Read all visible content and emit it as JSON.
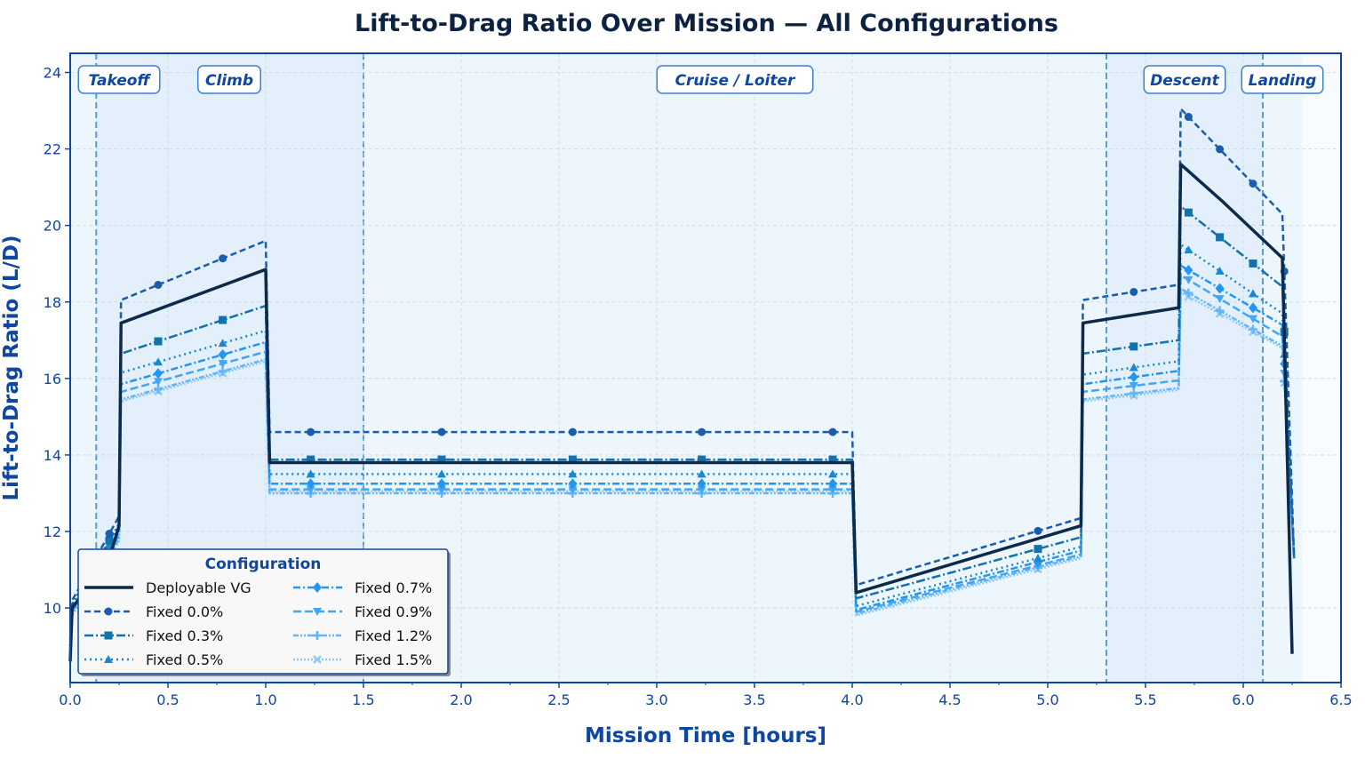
{
  "chart_data": {
    "type": "line",
    "title": "Lift-to-Drag Ratio Over Mission — All Configurations",
    "xlabel": "Mission Time  [hours]",
    "ylabel": "Lift-to-Drag Ratio  (L/D)",
    "xlim": [
      0,
      6.5
    ],
    "ylim": [
      8.05,
      24.5
    ],
    "xticks": [
      0,
      0.5,
      1,
      1.5,
      2,
      2.5,
      3,
      3.5,
      4,
      4.5,
      5,
      5.5,
      6,
      6.5
    ],
    "xtick_labels": [
      "0.0",
      "0.5",
      "1.0",
      "1.5",
      "2.0",
      "2.5",
      "3.0",
      "3.5",
      "4.0",
      "4.5",
      "5.0",
      "5.5",
      "6.0",
      "6.5"
    ],
    "yticks": [
      10,
      12,
      14,
      16,
      18,
      20,
      22,
      24
    ],
    "ytick_labels": [
      "10",
      "12",
      "14",
      "16",
      "18",
      "20",
      "22",
      "24"
    ],
    "grid": true,
    "phases": [
      {
        "label": "Takeoff",
        "start": 0,
        "end": 0.133,
        "shade": "#eef6fd"
      },
      {
        "label": "Climb",
        "start": 0.133,
        "end": 1.5,
        "shade": "#e3effb"
      },
      {
        "label": "Cruise / Loiter",
        "start": 1.5,
        "end": 5.3,
        "shade": "#eef6fd"
      },
      {
        "label": "Descent",
        "start": 5.3,
        "end": 6.1,
        "shade": "#e3effb"
      },
      {
        "label": "Landing",
        "start": 6.1,
        "end": 6.3,
        "shade": "#eef6fd"
      }
    ],
    "legend": {
      "title": "Configuration",
      "placement": "lower-left"
    },
    "fixed_x": [
      0,
      0.01,
      0.25,
      0.26,
      1.0,
      1.02,
      4.0,
      4.02,
      5.17,
      5.18,
      5.67,
      5.68,
      6.2,
      6.26
    ],
    "series": [
      {
        "name": "Deployable VG",
        "color": "#0d2a4a",
        "dash": "",
        "marker": "none",
        "x": [
          0,
          0.01,
          0.2,
          0.25,
          0.26,
          1.0,
          1.02,
          4.0,
          4.02,
          5.17,
          5.18,
          5.67,
          5.68,
          5.9,
          6.2,
          6.25
        ],
        "y": [
          8.6,
          10.0,
          11.3,
          12.15,
          17.45,
          18.85,
          13.8,
          13.8,
          10.4,
          12.15,
          17.45,
          17.85,
          21.6,
          20.6,
          19.15,
          8.8
        ]
      },
      {
        "name": "Fixed 0.0%",
        "color": "#1a5cae",
        "dash": "7,4",
        "marker": "circle",
        "y": [
          9.2,
          10.2,
          12.4,
          18.05,
          19.6,
          14.6,
          14.6,
          10.6,
          12.35,
          18.05,
          18.45,
          23.05,
          20.3,
          11.3
        ]
      },
      {
        "name": "Fixed 0.3%",
        "color": "#1272ad",
        "dash": "10,3,2,3",
        "marker": "square",
        "y": [
          9.1,
          10.1,
          12.2,
          16.65,
          17.9,
          13.88,
          13.88,
          10.25,
          11.85,
          16.65,
          17.0,
          20.5,
          18.4,
          11.3
        ]
      },
      {
        "name": "Fixed 0.5%",
        "color": "#1889d0",
        "dash": "2,4",
        "marker": "triangle",
        "y": [
          9.0,
          10.0,
          12.1,
          16.15,
          17.25,
          13.5,
          13.5,
          10.05,
          11.6,
          16.1,
          16.45,
          19.5,
          17.7,
          11.3
        ]
      },
      {
        "name": "Fixed 0.7%",
        "color": "#2196f3",
        "dash": "8,3,2,3",
        "marker": "diamond",
        "y": [
          9.0,
          9.95,
          12.0,
          15.85,
          16.95,
          13.25,
          13.25,
          9.95,
          11.5,
          15.85,
          16.2,
          18.95,
          17.4,
          11.3
        ]
      },
      {
        "name": "Fixed 0.9%",
        "color": "#42a5f5",
        "dash": "9,4",
        "marker": "triangle-down",
        "y": [
          9.0,
          9.9,
          11.9,
          15.65,
          16.7,
          13.1,
          13.1,
          9.9,
          11.4,
          15.65,
          15.95,
          18.7,
          17.1,
          11.3
        ]
      },
      {
        "name": "Fixed 1.2%",
        "color": "#64b5f6",
        "dash": "6,2,2,2,2,2",
        "marker": "plus",
        "y": [
          9.0,
          9.85,
          11.8,
          15.45,
          16.5,
          13.0,
          13.0,
          9.85,
          11.35,
          15.45,
          15.75,
          18.35,
          16.85,
          11.3
        ]
      },
      {
        "name": "Fixed 1.5%",
        "color": "#90caf9",
        "dash": "2,2",
        "marker": "x",
        "y": [
          9.0,
          9.8,
          11.75,
          15.4,
          16.45,
          13.05,
          13.05,
          9.8,
          11.3,
          15.4,
          15.7,
          18.25,
          16.8,
          11.3
        ]
      }
    ],
    "marker_x": [
      0.2,
      0.45,
      0.78,
      1.23,
      1.9,
      2.57,
      3.23,
      3.9,
      4.95,
      5.44,
      5.72,
      5.88,
      6.05,
      6.21
    ]
  }
}
